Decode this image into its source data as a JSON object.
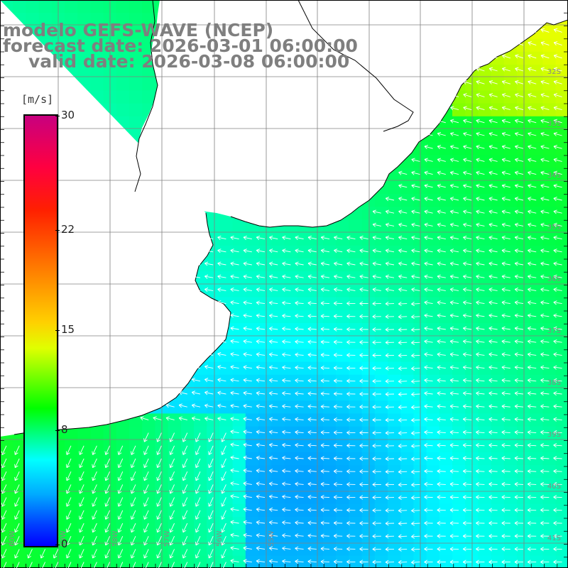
{
  "title": {
    "line1": "modelo GEFS-WAVE (NCEP)",
    "line2": "forecast date: 2026-03-01 06:00:00",
    "line3": "valid date: 2026-03-08 06:00:00"
  },
  "colorbar": {
    "units": "[m/s]",
    "labels": [
      {
        "value": 30,
        "text": "30"
      },
      {
        "value": 22,
        "text": "22"
      },
      {
        "value": 15,
        "text": "15"
      },
      {
        "value": 8,
        "text": "8"
      },
      {
        "value": 0,
        "text": "0"
      }
    ],
    "min": 0,
    "max": 30
  },
  "map": {
    "latitude_labels": [
      "32S",
      "33S",
      "34S",
      "35S",
      "36S",
      "37S",
      "38S",
      "39S",
      "40S",
      "41S"
    ],
    "longitude_labels": [
      "60W",
      "59W",
      "58W",
      "57W",
      "56W",
      "55W"
    ],
    "land_color": "#ffffff",
    "coast_color": "#000000",
    "grid_color": "#808080",
    "arrow_color": "#ffffff"
  }
}
